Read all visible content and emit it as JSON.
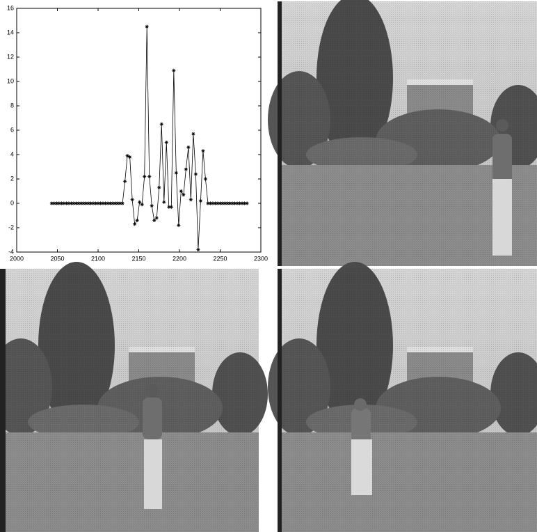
{
  "chart_data": {
    "type": "line",
    "color": "#000000",
    "marker": "asterisk",
    "x": [
      2043,
      2046,
      2049,
      2052,
      2055,
      2058,
      2061,
      2064,
      2067,
      2070,
      2073,
      2076,
      2079,
      2082,
      2085,
      2088,
      2091,
      2094,
      2097,
      2100,
      2103,
      2106,
      2109,
      2112,
      2115,
      2118,
      2121,
      2124,
      2127,
      2130,
      2133,
      2136,
      2139,
      2142,
      2145,
      2148,
      2151,
      2154,
      2157,
      2160,
      2163,
      2166,
      2169,
      2172,
      2175,
      2178,
      2181,
      2184,
      2187,
      2190,
      2193,
      2196,
      2199,
      2202,
      2205,
      2208,
      2211,
      2214,
      2217,
      2220,
      2223,
      2226,
      2229,
      2232,
      2235,
      2238,
      2241,
      2244,
      2247,
      2250,
      2253,
      2256,
      2259,
      2262,
      2265,
      2268,
      2271,
      2274,
      2277,
      2280,
      2283
    ],
    "values": [
      0,
      0,
      0,
      0,
      0,
      0,
      0,
      0,
      0,
      0,
      0,
      0,
      0,
      0,
      0,
      0,
      0,
      0,
      0,
      0,
      0,
      0,
      0,
      0,
      0,
      0,
      0,
      0,
      0,
      0,
      1.8,
      3.9,
      3.8,
      0.3,
      -1.7,
      -1.4,
      0.1,
      -0.1,
      2.2,
      14.5,
      2.2,
      -0.2,
      -1.4,
      -1.2,
      1.3,
      6.5,
      0.1,
      5,
      -0.3,
      -0.3,
      10.9,
      2.5,
      -1.8,
      1,
      0.7,
      2.8,
      4.6,
      0.3,
      5.7,
      2.4,
      -3.8,
      0.2,
      4.3,
      2.0,
      0,
      0,
      0,
      0,
      0,
      0,
      0,
      0,
      0,
      0,
      0,
      0,
      0,
      0,
      0,
      0,
      0
    ],
    "xlim": [
      2000,
      2300
    ],
    "ylim": [
      -4,
      16
    ],
    "xticks": [
      2000,
      2050,
      2100,
      2150,
      2200,
      2250,
      2300
    ],
    "yticks": [
      -4,
      -2,
      0,
      2,
      4,
      6,
      8,
      10,
      12,
      14,
      16
    ]
  }
}
